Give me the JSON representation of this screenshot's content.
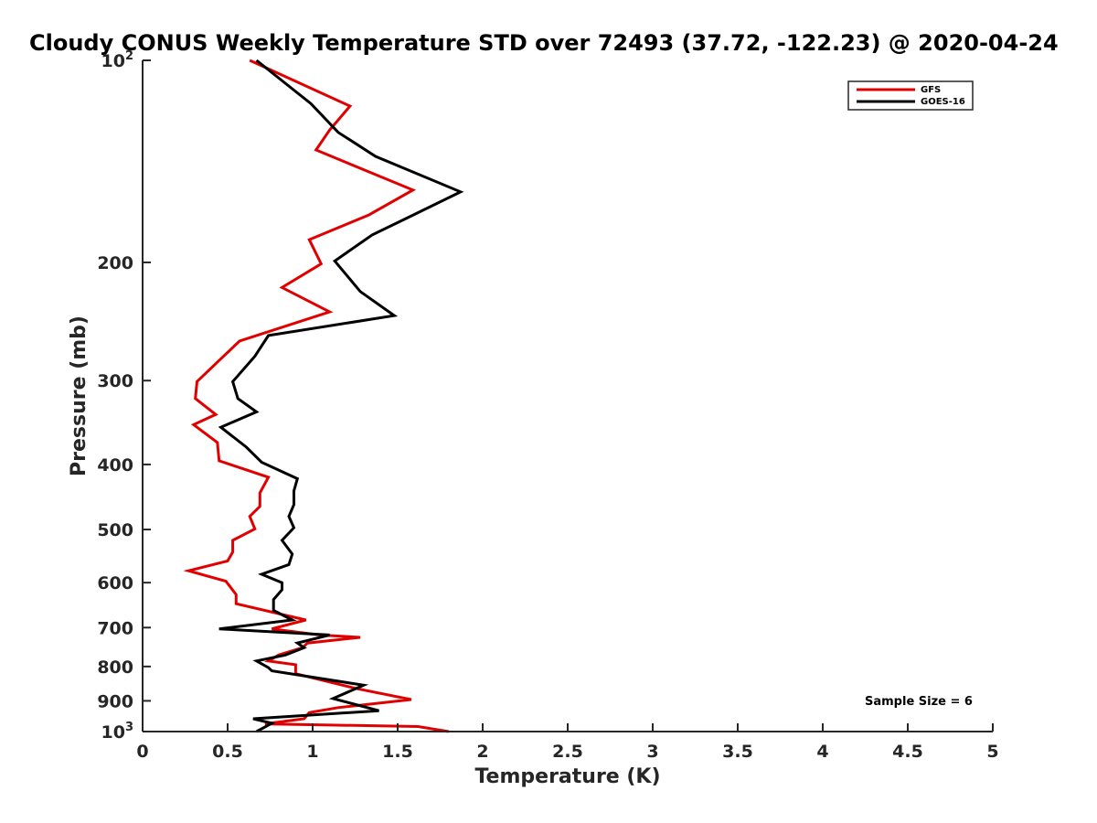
{
  "chart_data": {
    "type": "line",
    "title": "Cloudy CONUS Weekly Temperature STD over 72493 (37.72, -122.23) @ 2020-04-24",
    "xlabel": "Temperature (K)",
    "ylabel": "Pressure (mb)",
    "xlim": [
      0,
      5
    ],
    "ylim": [
      100,
      1000
    ],
    "y_scale": "log",
    "y_reversed": true,
    "grid": false,
    "legend_position": "top-right",
    "x_ticks": [
      0,
      0.5,
      1,
      1.5,
      2,
      2.5,
      3,
      3.5,
      4,
      4.5,
      5
    ],
    "x_tick_labels": [
      "0",
      "0.5",
      "1",
      "1.5",
      "2",
      "2.5",
      "3",
      "3.5",
      "4",
      "4.5",
      "5"
    ],
    "y_ticks": [
      {
        "value": 100,
        "label": "10",
        "sup": "2"
      },
      {
        "value": 200,
        "label": "200",
        "sup": ""
      },
      {
        "value": 300,
        "label": "300",
        "sup": ""
      },
      {
        "value": 400,
        "label": "400",
        "sup": ""
      },
      {
        "value": 500,
        "label": "500",
        "sup": ""
      },
      {
        "value": 600,
        "label": "600",
        "sup": ""
      },
      {
        "value": 700,
        "label": "700",
        "sup": ""
      },
      {
        "value": 800,
        "label": "800",
        "sup": ""
      },
      {
        "value": 900,
        "label": "900",
        "sup": ""
      },
      {
        "value": 1000,
        "label": "10",
        "sup": "3"
      }
    ],
    "annotation": "Sample Size = 6",
    "series": [
      {
        "name": "GFS",
        "color": "#e00000",
        "points": [
          [
            0.63,
            100
          ],
          [
            1.22,
            117
          ],
          [
            1.1,
            127
          ],
          [
            1.02,
            136
          ],
          [
            1.59,
            156
          ],
          [
            1.33,
            170
          ],
          [
            0.98,
            185
          ],
          [
            1.05,
            201
          ],
          [
            0.82,
            218
          ],
          [
            1.1,
            237
          ],
          [
            0.57,
            262
          ],
          [
            0.45,
            280
          ],
          [
            0.32,
            301
          ],
          [
            0.31,
            319
          ],
          [
            0.43,
            337
          ],
          [
            0.3,
            349
          ],
          [
            0.44,
            371
          ],
          [
            0.45,
            395
          ],
          [
            0.74,
            418
          ],
          [
            0.69,
            441
          ],
          [
            0.69,
            462
          ],
          [
            0.63,
            478
          ],
          [
            0.66,
            499
          ],
          [
            0.53,
            519
          ],
          [
            0.53,
            540
          ],
          [
            0.5,
            557
          ],
          [
            0.27,
            576
          ],
          [
            0.49,
            597
          ],
          [
            0.55,
            625
          ],
          [
            0.55,
            645
          ],
          [
            0.96,
            682
          ],
          [
            0.76,
            703
          ],
          [
            1.04,
            718
          ],
          [
            1.28,
            724
          ],
          [
            0.97,
            738
          ],
          [
            0.94,
            750
          ],
          [
            0.8,
            769
          ],
          [
            0.74,
            785
          ],
          [
            0.9,
            795
          ],
          [
            0.9,
            820
          ],
          [
            1.25,
            862
          ],
          [
            1.58,
            896
          ],
          [
            1.15,
            921
          ],
          [
            0.98,
            937
          ],
          [
            0.95,
            957
          ],
          [
            0.72,
            974
          ],
          [
            1.62,
            983
          ],
          [
            1.8,
            1000
          ]
        ]
      },
      {
        "name": "GOES-16",
        "color": "#000000",
        "points": [
          [
            0.67,
            100
          ],
          [
            0.99,
            116
          ],
          [
            1.15,
            128
          ],
          [
            1.37,
            139
          ],
          [
            1.87,
            157
          ],
          [
            1.55,
            172
          ],
          [
            1.35,
            182
          ],
          [
            1.13,
            199
          ],
          [
            1.28,
            221
          ],
          [
            1.48,
            240
          ],
          [
            0.74,
            257
          ],
          [
            0.66,
            276
          ],
          [
            0.53,
            301
          ],
          [
            0.56,
            319
          ],
          [
            0.67,
            334
          ],
          [
            0.46,
            352
          ],
          [
            0.61,
            377
          ],
          [
            0.7,
            397
          ],
          [
            0.91,
            420
          ],
          [
            0.89,
            438
          ],
          [
            0.89,
            459
          ],
          [
            0.86,
            478
          ],
          [
            0.89,
            497
          ],
          [
            0.82,
            519
          ],
          [
            0.88,
            544
          ],
          [
            0.86,
            564
          ],
          [
            0.7,
            583
          ],
          [
            0.82,
            600
          ],
          [
            0.82,
            615
          ],
          [
            0.77,
            636
          ],
          [
            0.77,
            660
          ],
          [
            0.88,
            682
          ],
          [
            0.45,
            703
          ],
          [
            1.1,
            718
          ],
          [
            0.91,
            738
          ],
          [
            0.95,
            750
          ],
          [
            0.84,
            769
          ],
          [
            0.67,
            785
          ],
          [
            0.74,
            803
          ],
          [
            0.76,
            812
          ],
          [
            1.3,
            853
          ],
          [
            1.12,
            893
          ],
          [
            1.39,
            931
          ],
          [
            0.65,
            957
          ],
          [
            0.76,
            972
          ],
          [
            0.67,
            1000
          ]
        ]
      }
    ]
  }
}
